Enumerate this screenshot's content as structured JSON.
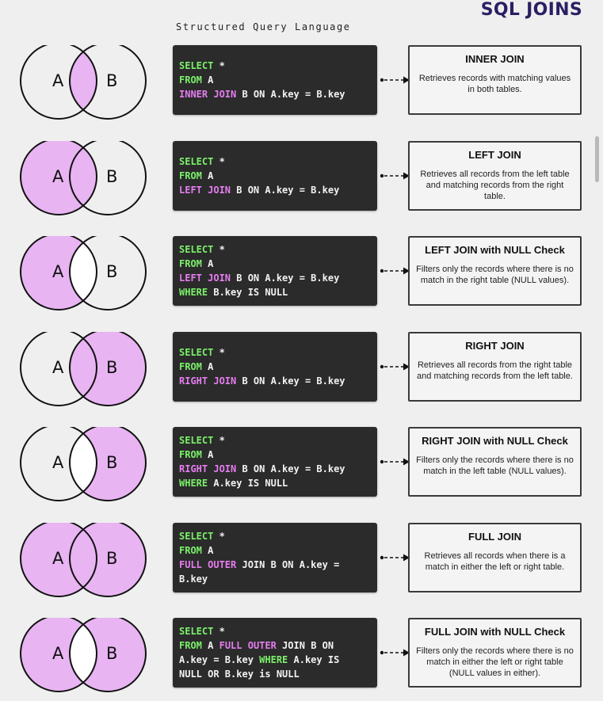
{
  "header": {
    "title": "SQL JOINS",
    "subtitle": "Structured Query Language"
  },
  "colors": {
    "circle_fill": "#e8b4f2",
    "code_bg": "#2b2b2b",
    "keyword": "#7bf06a",
    "join_keyword": "#e67df0",
    "title": "#2a1f63"
  },
  "joins": [
    {
      "fill": "intersection",
      "label_a": "A",
      "label_b": "B",
      "code": [
        [
          {
            "t": "SELECT",
            "c": "kw"
          },
          {
            "t": " *",
            "c": "tx"
          }
        ],
        [
          {
            "t": "FROM",
            "c": "kw"
          },
          {
            "t": " A",
            "c": "tx"
          }
        ],
        [
          {
            "t": "INNER JOIN",
            "c": "hl"
          },
          {
            "t": " B ON A.key = B.key",
            "c": "tx"
          }
        ]
      ],
      "title": "INNER JOIN",
      "description": "Retrieves records with matching values in both tables."
    },
    {
      "fill": "left",
      "label_a": "A",
      "label_b": "B",
      "code": [
        [
          {
            "t": "SELECT",
            "c": "kw"
          },
          {
            "t": " *",
            "c": "tx"
          }
        ],
        [
          {
            "t": "FROM",
            "c": "kw"
          },
          {
            "t": " A",
            "c": "tx"
          }
        ],
        [
          {
            "t": "LEFT JOIN",
            "c": "hl"
          },
          {
            "t": " B ON A.key = B.key",
            "c": "tx"
          }
        ]
      ],
      "title": "LEFT JOIN",
      "description": "Retrieves all records from the left table and matching records from the right table."
    },
    {
      "fill": "left_only",
      "label_a": "A",
      "label_b": "B",
      "code": [
        [
          {
            "t": "SELECT",
            "c": "kw"
          },
          {
            "t": " *",
            "c": "tx"
          }
        ],
        [
          {
            "t": "FROM",
            "c": "kw"
          },
          {
            "t": " A",
            "c": "tx"
          }
        ],
        [
          {
            "t": "LEFT JOIN",
            "c": "hl"
          },
          {
            "t": " B ON A.key = B.key",
            "c": "tx"
          }
        ],
        [
          {
            "t": "WHERE",
            "c": "kw"
          },
          {
            "t": " B.key IS NULL",
            "c": "tx"
          }
        ]
      ],
      "title": "LEFT JOIN with NULL Check",
      "description": "Filters only the records where there is no match in the right table (NULL values)."
    },
    {
      "fill": "right",
      "label_a": "A",
      "label_b": "B",
      "code": [
        [
          {
            "t": "SELECT",
            "c": "kw"
          },
          {
            "t": " *",
            "c": "tx"
          }
        ],
        [
          {
            "t": "FROM",
            "c": "kw"
          },
          {
            "t": " A",
            "c": "tx"
          }
        ],
        [
          {
            "t": "RIGHT JOIN",
            "c": "hl"
          },
          {
            "t": " B ON A.key = B.key",
            "c": "tx"
          }
        ]
      ],
      "title": "RIGHT JOIN",
      "description": "Retrieves all records from the right table and matching records from the left table."
    },
    {
      "fill": "right_only",
      "label_a": "A",
      "label_b": "B",
      "code": [
        [
          {
            "t": "SELECT",
            "c": "kw"
          },
          {
            "t": " *",
            "c": "tx"
          }
        ],
        [
          {
            "t": "FROM",
            "c": "kw"
          },
          {
            "t": " A",
            "c": "tx"
          }
        ],
        [
          {
            "t": "RIGHT JOIN",
            "c": "hl"
          },
          {
            "t": " B ON A.key = B.key",
            "c": "tx"
          }
        ],
        [
          {
            "t": "WHERE",
            "c": "kw"
          },
          {
            "t": " A.key IS NULL",
            "c": "tx"
          }
        ]
      ],
      "title": "RIGHT JOIN with NULL Check",
      "description": "Filters only the records where there is no match in the left table (NULL values)."
    },
    {
      "fill": "full",
      "label_a": "A",
      "label_b": "B",
      "code": [
        [
          {
            "t": "SELECT",
            "c": "kw"
          },
          {
            "t": " *",
            "c": "tx"
          }
        ],
        [
          {
            "t": "FROM",
            "c": "kw"
          },
          {
            "t": " A",
            "c": "tx"
          }
        ],
        [
          {
            "t": "FULL OUTER",
            "c": "hl"
          },
          {
            "t": " JOIN B ON A.key =",
            "c": "tx"
          }
        ],
        [
          {
            "t": "B.key",
            "c": "tx"
          }
        ]
      ],
      "title": "FULL JOIN",
      "description": "Retrieves all records when there is a match in either the left or right table."
    },
    {
      "fill": "full_exclusive",
      "label_a": "A",
      "label_b": "B",
      "code": [
        [
          {
            "t": "SELECT",
            "c": "kw"
          },
          {
            "t": " *",
            "c": "tx"
          }
        ],
        [
          {
            "t": "FROM",
            "c": "kw"
          },
          {
            "t": " A ",
            "c": "tx"
          },
          {
            "t": "FULL OUTER",
            "c": "hl"
          },
          {
            "t": " JOIN B ON",
            "c": "tx"
          }
        ],
        [
          {
            "t": "A.key = B.key ",
            "c": "tx"
          },
          {
            "t": "WHERE",
            "c": "kw"
          },
          {
            "t": " A.key IS",
            "c": "tx"
          }
        ],
        [
          {
            "t": "NULL OR B.key is NULL",
            "c": "tx"
          }
        ]
      ],
      "title": "FULL JOIN with NULL Check",
      "description": "Filters only the records where there is no match in either the left or right table (NULL values in either)."
    }
  ]
}
